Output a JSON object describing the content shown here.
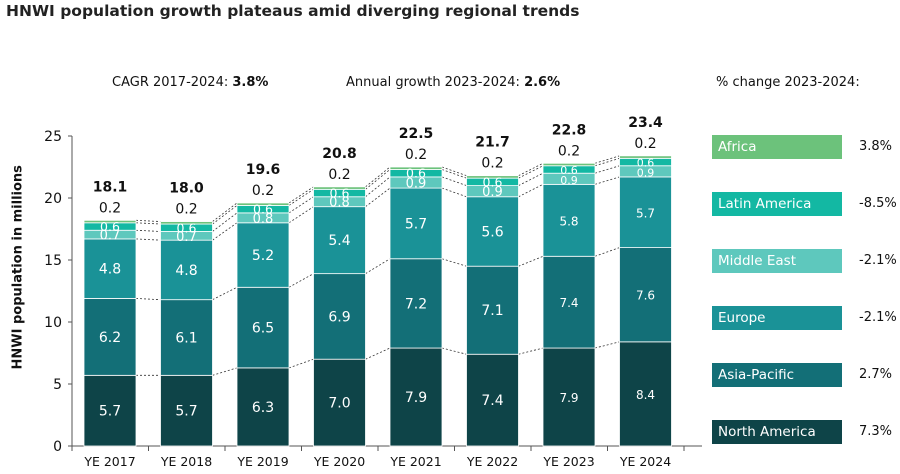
{
  "title": "HNWI population growth plateaus amid diverging regional trends",
  "header": {
    "cagr_label": "CAGR 2017-2024:",
    "cagr_value": "3.8%",
    "annual_label": "Annual growth 2023-2024:",
    "annual_value": "2.6%",
    "pct_label": "% change 2023-2024:"
  },
  "legend": [
    {
      "name": "Africa",
      "change": "3.8%",
      "color": "#6cc27b"
    },
    {
      "name": "Latin America",
      "change": "-8.5%",
      "color": "#13b8a3"
    },
    {
      "name": "Middle East",
      "change": "-2.1%",
      "color": "#5ec8bd"
    },
    {
      "name": "Europe",
      "change": "-2.1%",
      "color": "#1a9297"
    },
    {
      "name": "Asia-Pacific",
      "change": "2.7%",
      "color": "#136f77"
    },
    {
      "name": "North America",
      "change": "7.3%",
      "color": "#0e4448"
    }
  ],
  "chart_data": {
    "type": "bar",
    "stacked": true,
    "title": "HNWI population growth plateaus amid diverging regional trends",
    "xlabel": "",
    "ylabel": "HNWI population in millions",
    "ylim": [
      0,
      25
    ],
    "yticks": [
      0,
      5,
      10,
      15,
      20,
      25
    ],
    "categories": [
      "YE 2017",
      "YE 2018",
      "YE 2019",
      "YE 2020",
      "YE 2021",
      "YE 2022",
      "YE 2023",
      "YE 2024"
    ],
    "totals": [
      "18.1",
      "18.0",
      "19.6",
      "20.8",
      "22.5",
      "21.7",
      "22.8",
      "23.4"
    ],
    "series": [
      {
        "name": "North America",
        "color": "#0e4448",
        "labels": [
          "5.7",
          "5.7",
          "6.3",
          "7.0",
          "7.9",
          "7.4",
          "7.9",
          "8.4"
        ],
        "values": [
          5.7,
          5.7,
          6.3,
          7.0,
          7.9,
          7.4,
          7.9,
          8.4
        ]
      },
      {
        "name": "Asia-Pacific",
        "color": "#136f77",
        "labels": [
          "6.2",
          "6.1",
          "6.5",
          "6.9",
          "7.2",
          "7.1",
          "7.4",
          "7.6"
        ],
        "values": [
          6.2,
          6.1,
          6.5,
          6.9,
          7.2,
          7.1,
          7.4,
          7.6
        ]
      },
      {
        "name": "Europe",
        "color": "#1a9297",
        "labels": [
          "4.8",
          "4.8",
          "5.2",
          "5.4",
          "5.7",
          "5.6",
          "5.8",
          "5.7"
        ],
        "values": [
          4.8,
          4.8,
          5.2,
          5.4,
          5.7,
          5.6,
          5.8,
          5.7
        ]
      },
      {
        "name": "Middle East",
        "color": "#5ec8bd",
        "labels": [
          "0.7",
          "0.7",
          "0.8",
          "0.8",
          "0.9",
          "0.9",
          "0.9",
          "0.9"
        ],
        "values": [
          0.7,
          0.7,
          0.8,
          0.8,
          0.9,
          0.9,
          0.9,
          0.9
        ]
      },
      {
        "name": "Latin America",
        "color": "#13b8a3",
        "labels": [
          "0.6",
          "0.6",
          "0.6",
          "0.6",
          "0.6",
          "0.6",
          "0.6",
          "0.6"
        ],
        "values": [
          0.6,
          0.6,
          0.6,
          0.6,
          0.6,
          0.6,
          0.6,
          0.6
        ]
      },
      {
        "name": "Africa",
        "color": "#6cc27b",
        "labels": [
          "0.2",
          "0.2",
          "0.2",
          "0.2",
          "0.2",
          "0.2",
          "0.2",
          "0.2"
        ],
        "values": [
          0.2,
          0.2,
          0.2,
          0.2,
          0.2,
          0.2,
          0.2,
          0.2
        ]
      }
    ]
  }
}
